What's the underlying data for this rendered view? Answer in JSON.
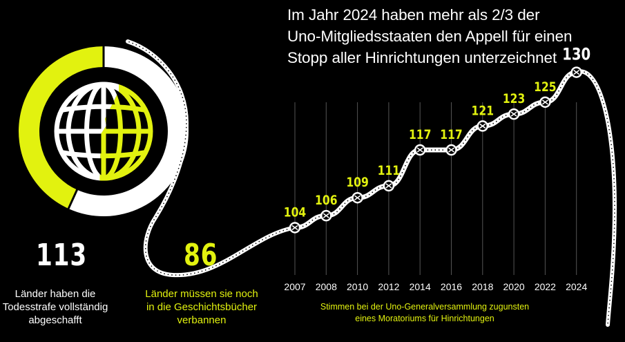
{
  "title_lines": [
    "Im Jahr 2024 haben mehr als 2/3 der",
    "Uno-Mitgliedsstaaten den Appell für einen",
    "Stopp aller Hinrichtungen unterzeichnet"
  ],
  "stats": {
    "abolished": {
      "value": "113",
      "label_lines": [
        "Länder haben die",
        "Todesstrafe vollständig",
        "abgeschafft"
      ]
    },
    "remaining": {
      "value": "86",
      "label_lines": [
        "Länder müssen sie noch",
        "in die Geschichtsbücher",
        "verbannen"
      ]
    }
  },
  "caption_lines": [
    "Stimmen bei der Uno-Generalversammlung zugunsten",
    "eines Moratoriums für Hinrichtungen"
  ],
  "colors": {
    "background": "#000000",
    "white": "#ffffff",
    "accent": "#e2f20f",
    "gridline": "#555555"
  },
  "chart_data": [
    {
      "type": "pie",
      "categories": [
        "Länder haben die Todesstrafe vollständig abgeschafft",
        "Länder müssen sie noch in die Geschichtsbücher verbannen"
      ],
      "values": [
        113,
        86
      ],
      "colors": [
        "#ffffff",
        "#e2f20f"
      ],
      "icon": "globe-icon"
    },
    {
      "type": "line",
      "x": [
        "2007",
        "2008",
        "2010",
        "2012",
        "2014",
        "2016",
        "2018",
        "2020",
        "2022",
        "2024"
      ],
      "values": [
        104,
        106,
        109,
        111,
        117,
        117,
        121,
        123,
        125,
        130
      ],
      "ylim": [
        97,
        134
      ],
      "grid": true,
      "highlight_last": true
    }
  ]
}
